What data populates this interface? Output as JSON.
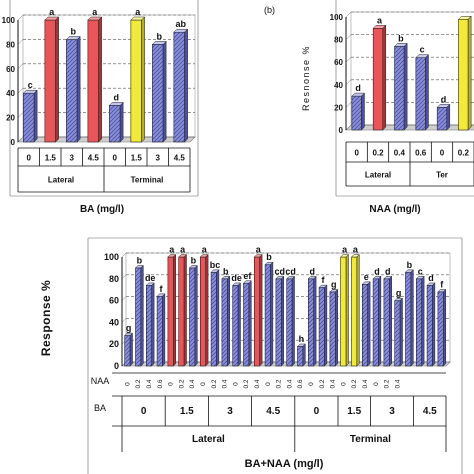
{
  "colors": {
    "hatch_blue": "#8a8fd6",
    "red": "#e8565a",
    "yellow": "#f2ea3a",
    "grid": "#555555"
  },
  "chart_data": [
    {
      "type": "bar",
      "panel": "",
      "ylabel": "",
      "ylim": [
        0,
        100
      ],
      "yticks": [
        0,
        20,
        40,
        60,
        80,
        100
      ],
      "categories": [
        "0",
        "1.5",
        "3",
        "4.5",
        "0",
        "1.5",
        "3",
        "4.5"
      ],
      "values": [
        40,
        100,
        84,
        100,
        30,
        100,
        80,
        90
      ],
      "letters": [
        "c",
        "a",
        "b",
        "a",
        "d",
        "a",
        "b",
        "ab"
      ],
      "colors": [
        "blue",
        "red",
        "blue",
        "red",
        "blue",
        "yellow",
        "blue",
        "blue"
      ],
      "groups": [
        "Lateral",
        "Terminal"
      ],
      "xlabel": "BA (mg/l)"
    },
    {
      "type": "bar",
      "panel": "(b)",
      "ylabel": "Resnonse %",
      "ylim": [
        0,
        100
      ],
      "yticks": [
        0,
        20,
        40,
        60,
        80,
        100
      ],
      "categories": [
        "0",
        "0.2",
        "0.4",
        "0.6",
        "0",
        "0.2"
      ],
      "values": [
        30,
        90,
        74,
        64,
        20,
        98
      ],
      "letters": [
        "d",
        "a",
        "b",
        "c",
        "d",
        ""
      ],
      "colors": [
        "blue",
        "red",
        "blue",
        "blue",
        "blue",
        "yellow"
      ],
      "groups": [
        "Lateral",
        "Ter"
      ],
      "xlabel": "NAA (mg/l)"
    },
    {
      "type": "bar",
      "panel": "",
      "ylabel": "Response %",
      "ylim": [
        0,
        100
      ],
      "yticks": [
        0,
        20,
        40,
        60,
        80,
        100
      ],
      "naa_row_label": "NAA",
      "ba_row_label": "BA",
      "naa_levels": [
        "0",
        "0.2",
        "0.4",
        "0.6"
      ],
      "ba_levels": [
        "0",
        "1.5",
        "3",
        "4.5",
        "0",
        "1.5",
        "3",
        "4.5"
      ],
      "values": [
        28,
        90,
        74,
        64,
        100,
        100,
        90,
        100,
        86,
        80,
        74,
        76,
        100,
        93,
        80,
        80,
        18,
        80,
        72,
        68,
        100,
        100,
        75,
        80,
        80,
        60,
        86,
        80,
        74,
        68
      ],
      "letters": [
        "g",
        "b",
        "de",
        "f",
        "a",
        "a",
        "b",
        "a",
        "bc",
        "b",
        "de",
        "ef",
        "a",
        "b",
        "cd",
        "cd",
        "h",
        "d",
        "f",
        "g",
        "a",
        "a",
        "e",
        "d",
        "d",
        "g",
        "b",
        "c",
        "d",
        "f"
      ],
      "colors": [
        "blue",
        "blue",
        "blue",
        "blue",
        "red",
        "red",
        "blue",
        "red",
        "blue",
        "blue",
        "blue",
        "blue",
        "red",
        "blue",
        "blue",
        "blue",
        "blue",
        "blue",
        "blue",
        "blue",
        "yellow",
        "yellow",
        "blue",
        "blue",
        "blue",
        "blue",
        "blue",
        "blue",
        "blue",
        "blue"
      ],
      "groups": [
        "Lateral",
        "Terminal"
      ],
      "xlabel": "BA+NAA (mg/l)"
    }
  ]
}
